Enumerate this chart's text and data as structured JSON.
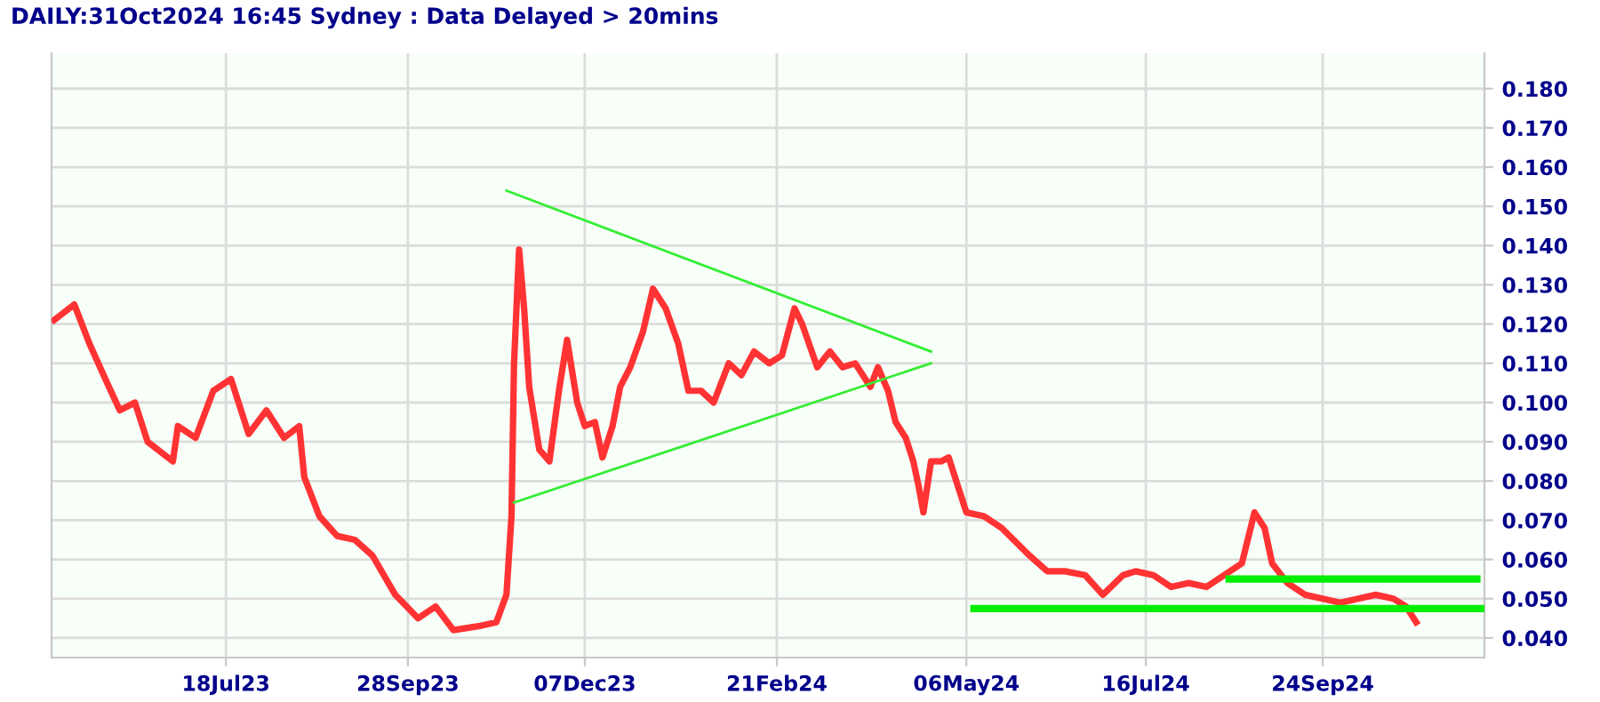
{
  "chart_data": {
    "type": "line",
    "title": "DAILY:31Oct2024 16:45 Sydney : Data Delayed > 20mins",
    "xlim": [
      "2023-05-10",
      "2024-11-27"
    ],
    "ylim": [
      0.035,
      0.189
    ],
    "xticks": [
      {
        "value": "2023-07-18",
        "label": "18Jul23"
      },
      {
        "value": "2023-09-28",
        "label": "28Sep23"
      },
      {
        "value": "2023-12-07",
        "label": "07Dec23"
      },
      {
        "value": "2024-02-21",
        "label": "21Feb24"
      },
      {
        "value": "2024-05-06",
        "label": "06May24"
      },
      {
        "value": "2024-07-16",
        "label": "16Jul24"
      },
      {
        "value": "2024-09-24",
        "label": "24Sep24"
      }
    ],
    "yticks": [
      {
        "value": 0.04,
        "label": "0.040"
      },
      {
        "value": 0.05,
        "label": "0.050"
      },
      {
        "value": 0.06,
        "label": "0.060"
      },
      {
        "value": 0.07,
        "label": "0.070"
      },
      {
        "value": 0.08,
        "label": "0.080"
      },
      {
        "value": 0.09,
        "label": "0.090"
      },
      {
        "value": 0.1,
        "label": "0.100"
      },
      {
        "value": 0.11,
        "label": "0.110"
      },
      {
        "value": 0.12,
        "label": "0.120"
      },
      {
        "value": 0.13,
        "label": "0.130"
      },
      {
        "value": 0.14,
        "label": "0.140"
      },
      {
        "value": 0.15,
        "label": "0.150"
      },
      {
        "value": 0.16,
        "label": "0.160"
      },
      {
        "value": 0.17,
        "label": "0.170"
      },
      {
        "value": 0.18,
        "label": "0.180"
      }
    ],
    "grid": true,
    "marker": "none",
    "line_style": "solid",
    "series": [
      {
        "color": "#ff3333",
        "x": [
          "2023-05-11",
          "2023-05-19",
          "2023-05-25",
          "2023-06-01",
          "2023-06-06",
          "2023-06-12",
          "2023-06-17",
          "2023-06-27",
          "2023-06-29",
          "2023-07-06",
          "2023-07-13",
          "2023-07-20",
          "2023-07-27",
          "2023-08-03",
          "2023-08-10",
          "2023-08-16",
          "2023-08-18",
          "2023-08-24",
          "2023-08-31",
          "2023-09-07",
          "2023-09-14",
          "2023-09-23",
          "2023-10-02",
          "2023-10-09",
          "2023-10-16",
          "2023-10-26",
          "2023-11-02",
          "2023-11-06",
          "2023-11-08",
          "2023-11-09",
          "2023-11-11",
          "2023-11-13",
          "2023-11-15",
          "2023-11-19",
          "2023-11-23",
          "2023-11-27",
          "2023-11-30",
          "2023-12-04",
          "2023-12-07",
          "2023-12-11",
          "2023-12-14",
          "2023-12-18",
          "2023-12-21",
          "2023-12-25",
          "2023-12-30",
          "2024-01-03",
          "2024-01-08",
          "2024-01-13",
          "2024-01-17",
          "2024-01-22",
          "2024-01-27",
          "2024-02-02",
          "2024-02-07",
          "2024-02-12",
          "2024-02-18",
          "2024-02-23",
          "2024-02-28",
          "2024-03-02",
          "2024-03-08",
          "2024-03-13",
          "2024-03-18",
          "2024-03-23",
          "2024-03-29",
          "2024-04-01",
          "2024-04-05",
          "2024-04-08",
          "2024-04-12",
          "2024-04-15",
          "2024-04-17",
          "2024-04-19",
          "2024-04-22",
          "2024-04-26",
          "2024-04-29",
          "2024-05-06",
          "2024-05-13",
          "2024-05-20",
          "2024-05-31",
          "2024-06-07",
          "2024-06-14",
          "2024-06-22",
          "2024-06-29",
          "2024-07-07",
          "2024-07-12",
          "2024-07-19",
          "2024-07-26",
          "2024-08-02",
          "2024-08-09",
          "2024-08-16",
          "2024-08-23",
          "2024-08-28",
          "2024-09-01",
          "2024-09-04",
          "2024-09-10",
          "2024-09-17",
          "2024-09-24",
          "2024-10-01",
          "2024-10-08",
          "2024-10-15",
          "2024-10-22",
          "2024-10-27",
          "2024-10-31"
        ],
        "values": [
          0.121,
          0.125,
          0.115,
          0.105,
          0.098,
          0.1,
          0.09,
          0.085,
          0.094,
          0.091,
          0.103,
          0.106,
          0.092,
          0.098,
          0.091,
          0.094,
          0.081,
          0.071,
          0.066,
          0.065,
          0.061,
          0.051,
          0.045,
          0.048,
          0.042,
          0.043,
          0.044,
          0.051,
          0.071,
          0.11,
          0.139,
          0.124,
          0.104,
          0.088,
          0.085,
          0.104,
          0.116,
          0.1,
          0.094,
          0.095,
          0.086,
          0.094,
          0.104,
          0.109,
          0.118,
          0.129,
          0.124,
          0.115,
          0.103,
          0.103,
          0.1,
          0.11,
          0.107,
          0.113,
          0.11,
          0.112,
          0.124,
          0.12,
          0.109,
          0.113,
          0.109,
          0.11,
          0.104,
          0.109,
          0.103,
          0.095,
          0.091,
          0.085,
          0.079,
          0.072,
          0.085,
          0.085,
          0.086,
          0.072,
          0.071,
          0.068,
          0.061,
          0.057,
          0.057,
          0.056,
          0.051,
          0.056,
          0.057,
          0.056,
          0.053,
          0.054,
          0.053,
          0.056,
          0.059,
          0.072,
          0.068,
          0.059,
          0.054,
          0.051,
          0.05,
          0.049,
          0.05,
          0.051,
          0.05,
          0.048,
          0.044
        ]
      },
      {
        "color": "#33ee33",
        "x": [
          "2023-11-06",
          "2024-04-22"
        ],
        "values": [
          0.154,
          0.113
        ]
      },
      {
        "color": "#33ee33",
        "x": [
          "2023-11-09",
          "2024-04-22"
        ],
        "values": [
          0.0745,
          0.11
        ]
      },
      {
        "color": "#00ee00",
        "x": [
          "2024-08-18",
          "2024-11-24"
        ],
        "values": [
          0.055,
          0.055
        ]
      },
      {
        "color": "#00ee00",
        "x": [
          "2024-05-09",
          "2024-11-26"
        ],
        "values": [
          0.0475,
          0.0475
        ]
      }
    ]
  }
}
